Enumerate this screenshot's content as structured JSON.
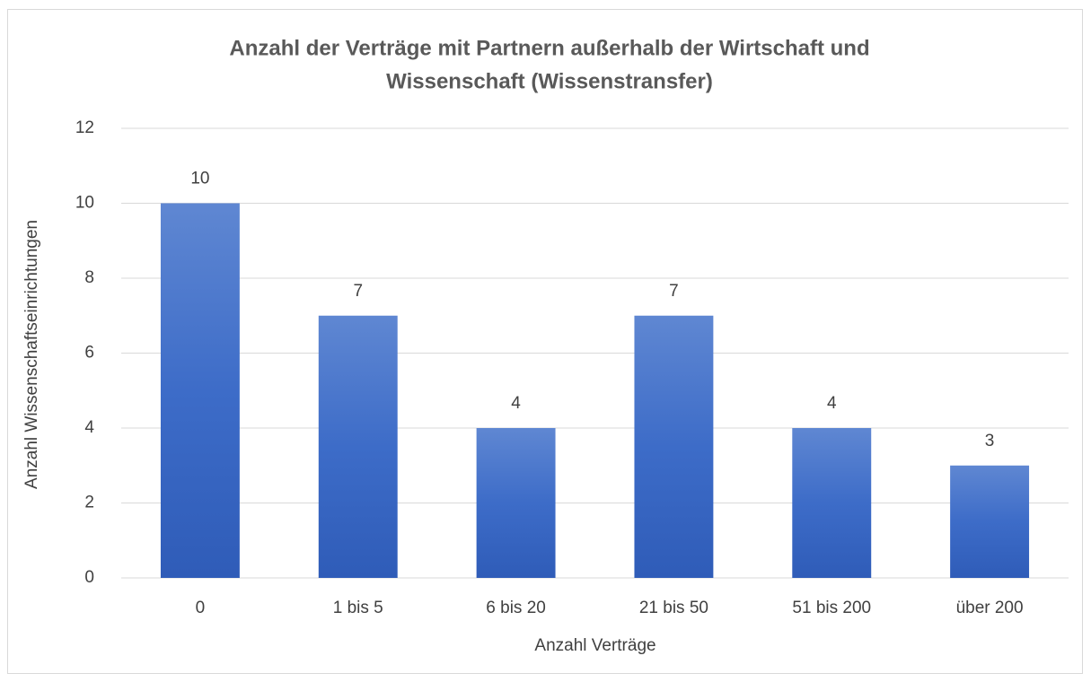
{
  "chart_data": {
    "type": "bar",
    "title": [
      "Anzahl der Verträge mit Partnern außerhalb der Wirtschaft und",
      "Wissenschaft (Wissenstransfer)"
    ],
    "x_label": "Anzahl Verträge",
    "y_label": "Anzahl Wissenschaftseinrichtungen",
    "categories": [
      "0",
      "1 bis 5",
      "6 bis 20",
      "21 bis 50",
      "51 bis 200",
      "über 200"
    ],
    "values": [
      10,
      7,
      4,
      7,
      4,
      3
    ],
    "color": "#4472c4",
    "ylim": [
      0,
      12
    ],
    "yticks": [
      0,
      2,
      4,
      6,
      8,
      10,
      12
    ],
    "grid": true
  }
}
